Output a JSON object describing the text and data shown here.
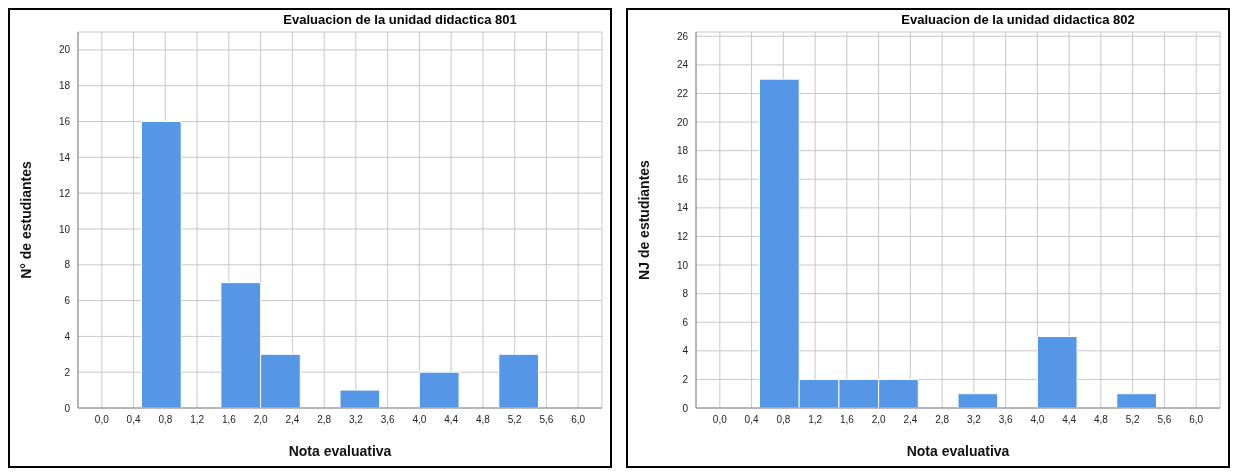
{
  "chart_data": [
    {
      "type": "histogram",
      "title": "Evaluacion de la unidad didactica 801",
      "xlabel": "Nota evaluativa",
      "ylabel": "N° de estudiantes",
      "bins": [
        0.5,
        1.0,
        1.5,
        2.0,
        2.5,
        3.0,
        3.5,
        4.0,
        4.5,
        5.0,
        5.5
      ],
      "values": [
        16,
        0,
        7,
        3,
        0,
        1,
        0,
        2,
        0,
        3
      ],
      "color": "#5596e6",
      "xlim": [
        -0.3,
        6.3
      ],
      "ylim": [
        0,
        21
      ],
      "xticks": [
        {
          "value": 0,
          "label": "0,0"
        },
        {
          "value": 0.4,
          "label": "0,4"
        },
        {
          "value": 0.8,
          "label": "0,8"
        },
        {
          "value": 1.2,
          "label": "1,2"
        },
        {
          "value": 1.6,
          "label": "1,6"
        },
        {
          "value": 2.0,
          "label": "2,0"
        },
        {
          "value": 2.4,
          "label": "2,4"
        },
        {
          "value": 2.8,
          "label": "2,8"
        },
        {
          "value": 3.2,
          "label": "3,2"
        },
        {
          "value": 3.6,
          "label": "3,6"
        },
        {
          "value": 4.0,
          "label": "4,0"
        },
        {
          "value": 4.4,
          "label": "4,4"
        },
        {
          "value": 4.8,
          "label": "4,8"
        },
        {
          "value": 5.2,
          "label": "5,2"
        },
        {
          "value": 5.6,
          "label": "5,6"
        },
        {
          "value": 6.0,
          "label": "6,0"
        }
      ],
      "yticks": [
        0,
        2,
        4,
        6,
        8,
        10,
        12,
        14,
        16,
        18,
        20
      ],
      "grid": true
    },
    {
      "type": "histogram",
      "title": "Evaluacion de la unidad didactica 802",
      "xlabel": "Nota evaluativa",
      "ylabel": "NJ de estudiantes",
      "bins": [
        0.5,
        1.0,
        1.5,
        2.0,
        2.5,
        3.0,
        3.5,
        4.0,
        4.5,
        5.0,
        5.5
      ],
      "values": [
        23,
        2,
        2,
        2,
        0,
        1,
        0,
        5,
        0,
        1
      ],
      "color": "#5596e6",
      "xlim": [
        -0.3,
        6.3
      ],
      "ylim": [
        0,
        26.3
      ],
      "xticks": [
        {
          "value": 0,
          "label": "0,0"
        },
        {
          "value": 0.4,
          "label": "0,4"
        },
        {
          "value": 0.8,
          "label": "0,8"
        },
        {
          "value": 1.2,
          "label": "1,2"
        },
        {
          "value": 1.6,
          "label": "1,6"
        },
        {
          "value": 2.0,
          "label": "2,0"
        },
        {
          "value": 2.4,
          "label": "2,4"
        },
        {
          "value": 2.8,
          "label": "2,8"
        },
        {
          "value": 3.2,
          "label": "3,2"
        },
        {
          "value": 3.6,
          "label": "3,6"
        },
        {
          "value": 4.0,
          "label": "4,0"
        },
        {
          "value": 4.4,
          "label": "4,4"
        },
        {
          "value": 4.8,
          "label": "4,8"
        },
        {
          "value": 5.2,
          "label": "5,2"
        },
        {
          "value": 5.6,
          "label": "5,6"
        },
        {
          "value": 6.0,
          "label": "6,0"
        }
      ],
      "yticks": [
        0,
        2,
        4,
        6,
        8,
        10,
        12,
        14,
        16,
        18,
        20,
        22,
        24,
        26
      ],
      "grid": true
    }
  ]
}
